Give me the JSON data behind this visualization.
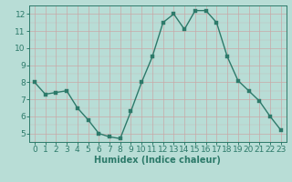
{
  "x": [
    0,
    1,
    2,
    3,
    4,
    5,
    6,
    7,
    8,
    9,
    10,
    11,
    12,
    13,
    14,
    15,
    16,
    17,
    18,
    19,
    20,
    21,
    22,
    23
  ],
  "y": [
    8.0,
    7.3,
    7.4,
    7.5,
    6.5,
    5.8,
    5.0,
    4.8,
    4.7,
    6.3,
    8.0,
    9.5,
    11.5,
    12.0,
    11.1,
    12.2,
    12.2,
    11.5,
    9.5,
    8.1,
    7.5,
    6.9,
    6.0,
    5.2
  ],
  "line_color": "#2d7a6a",
  "marker_color": "#2d7a6a",
  "bg_color": "#b8ddd6",
  "grid_color_major": "#c4a0a0",
  "xlabel": "Humidex (Indice chaleur)",
  "xlim": [
    -0.5,
    23.5
  ],
  "ylim": [
    4.5,
    12.5
  ],
  "yticks": [
    5,
    6,
    7,
    8,
    9,
    10,
    11,
    12
  ],
  "xticks": [
    0,
    1,
    2,
    3,
    4,
    5,
    6,
    7,
    8,
    9,
    10,
    11,
    12,
    13,
    14,
    15,
    16,
    17,
    18,
    19,
    20,
    21,
    22,
    23
  ],
  "tick_color": "#2d7a6a",
  "label_color": "#2d7a6a",
  "axis_color": "#2d7a6a",
  "font_size_label": 7,
  "font_size_tick": 6.5,
  "linewidth": 1.0,
  "markersize": 2.5
}
